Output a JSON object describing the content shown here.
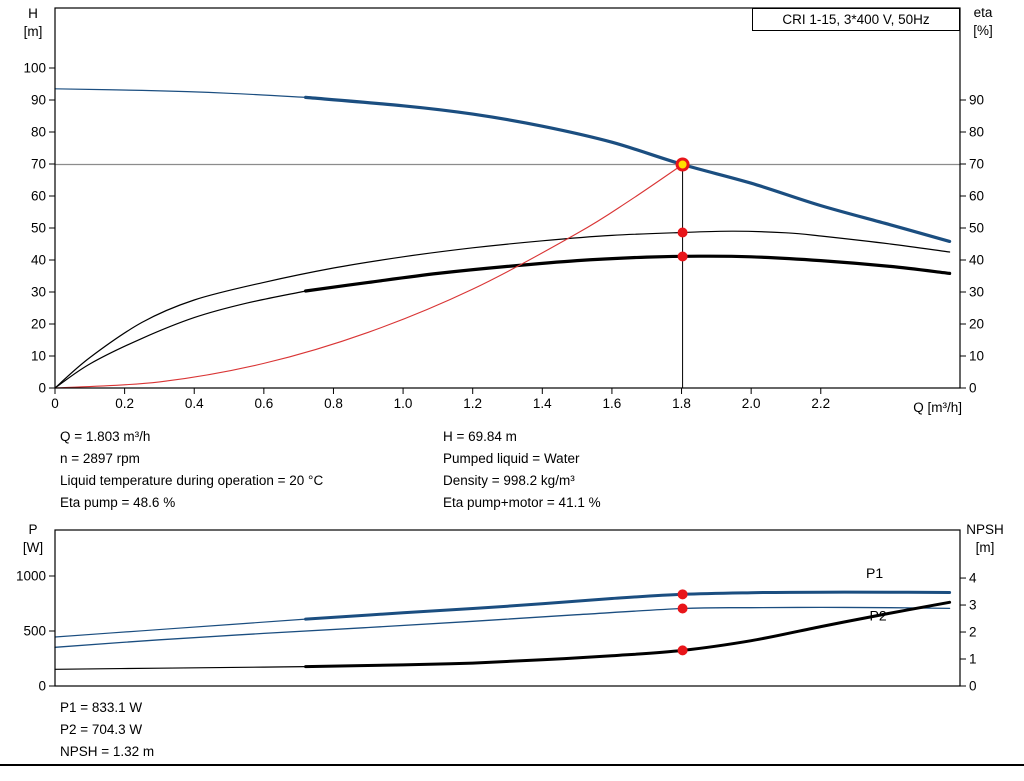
{
  "title_box": {
    "label": "CRI 1-15, 3*400 V, 50Hz"
  },
  "colors": {
    "blue": "#1b4e80",
    "red": "#d93535",
    "black": "#000000",
    "gray_line": "#8c8c8c",
    "marker_red": "#e8151a",
    "marker_yellow": "#ffe000"
  },
  "axis_labels": {
    "top_left_1": "H",
    "top_left_2": "[m]",
    "top_right_1": "eta",
    "top_right_2": "[%]",
    "top_x": "Q [m³/h]",
    "bottom_left_1": "P",
    "bottom_left_2": "[W]",
    "bottom_right_1": "NPSH",
    "bottom_right_2": "[m]"
  },
  "info_left": [
    "Q = 1.803 m³/h",
    "n = 2897 rpm",
    "Liquid temperature during operation = 20 °C",
    "Eta pump = 48.6 %"
  ],
  "info_right": [
    "H = 69.84 m",
    "Pumped liquid = Water",
    "Density = 998.2 kg/m³",
    "Eta pump+motor = 41.1 %"
  ],
  "info_bottom": [
    "P1 = 833.1 W",
    "P2 = 704.3 W",
    "NPSH = 1.32 m"
  ],
  "chart_data": [
    {
      "id": "qh-eta",
      "type": "line",
      "title": "CRI 1-15, 3*400 V, 50Hz",
      "x_axis": {
        "label": "Q [m³/h]",
        "min": 0,
        "max": 2.6,
        "ticks": [
          0,
          0.2,
          0.4,
          0.6,
          0.8,
          1.0,
          1.2,
          1.4,
          1.6,
          1.8,
          2.0,
          2.2
        ],
        "tick_labels": [
          "0",
          "0.2",
          "0.4",
          "0.6",
          "0.8",
          "1.0",
          "1.2",
          "1.4",
          "1.6",
          "1.8",
          "2.0",
          "2.2"
        ]
      },
      "left_axis": {
        "label": "H [m]",
        "min": 0,
        "max": 118.75,
        "ticks": [
          0,
          10,
          20,
          30,
          40,
          50,
          60,
          70,
          80,
          90,
          100
        ]
      },
      "right_axis": {
        "label": "eta [%]",
        "min": 0,
        "max": 118.75,
        "ticks": [
          0,
          10,
          20,
          30,
          40,
          50,
          60,
          70,
          80,
          90
        ]
      },
      "series": [
        {
          "name": "H-curve",
          "color": "blue",
          "axis": "left",
          "segments": [
            {
              "w": 1.2,
              "pts": [
                [
                  0,
                  93.5
                ],
                [
                  0.25,
                  93.0
                ],
                [
                  0.5,
                  92.1
                ],
                [
                  0.72,
                  90.8
                ]
              ]
            },
            {
              "w": 3.2,
              "pts": [
                [
                  0.72,
                  90.8
                ],
                [
                  1.0,
                  88.2
                ],
                [
                  1.2,
                  85.6
                ],
                [
                  1.4,
                  81.8
                ],
                [
                  1.6,
                  76.8
                ],
                [
                  1.803,
                  69.84
                ],
                [
                  2.0,
                  64.0
                ],
                [
                  2.2,
                  57.0
                ],
                [
                  2.4,
                  51.0
                ],
                [
                  2.57,
                  45.8
                ]
              ]
            }
          ]
        },
        {
          "name": "eta-pump",
          "color": "black",
          "axis": "right",
          "segments": [
            {
              "w": 1.2,
              "pts": [
                [
                  0,
                  0
                ],
                [
                  0.1,
                  9.5
                ],
                [
                  0.25,
                  20.5
                ],
                [
                  0.4,
                  27.5
                ],
                [
                  0.6,
                  33.0
                ],
                [
                  0.8,
                  37.5
                ],
                [
                  1.0,
                  41.0
                ],
                [
                  1.2,
                  43.8
                ],
                [
                  1.4,
                  46.0
                ],
                [
                  1.6,
                  47.7
                ],
                [
                  1.803,
                  48.6
                ],
                [
                  1.95,
                  49.0
                ],
                [
                  2.1,
                  48.5
                ],
                [
                  2.2,
                  47.5
                ],
                [
                  2.4,
                  45.0
                ],
                [
                  2.57,
                  42.5
                ]
              ]
            }
          ]
        },
        {
          "name": "eta-pump-motor",
          "color": "black",
          "axis": "right",
          "segments": [
            {
              "w": 1.2,
              "pts": [
                [
                  0,
                  0
                ],
                [
                  0.1,
                  7.5
                ],
                [
                  0.25,
                  15.5
                ],
                [
                  0.4,
                  22.0
                ],
                [
                  0.55,
                  26.5
                ],
                [
                  0.72,
                  30.3
                ]
              ]
            },
            {
              "w": 3.2,
              "pts": [
                [
                  0.72,
                  30.3
                ],
                [
                  0.9,
                  33.0
                ],
                [
                  1.1,
                  35.8
                ],
                [
                  1.3,
                  38.0
                ],
                [
                  1.5,
                  39.8
                ],
                [
                  1.7,
                  40.9
                ],
                [
                  1.85,
                  41.2
                ],
                [
                  2.0,
                  41.0
                ],
                [
                  2.2,
                  39.8
                ],
                [
                  2.4,
                  38.0
                ],
                [
                  2.57,
                  35.8
                ]
              ]
            }
          ]
        },
        {
          "name": "system-curve",
          "color": "red",
          "axis": "left",
          "segments": [
            {
              "w": 1.1,
              "pts": [
                [
                  0,
                  0
                ],
                [
                  0.3,
                  1.9
                ],
                [
                  0.6,
                  7.7
                ],
                [
                  0.9,
                  17.4
                ],
                [
                  1.2,
                  30.9
                ],
                [
                  1.5,
                  48.3
                ],
                [
                  1.65,
                  58.5
                ],
                [
                  1.803,
                  69.84
                ]
              ]
            }
          ]
        }
      ],
      "crosshair": {
        "h_line": 69.84,
        "v_line": 1.803
      },
      "markers": [
        {
          "q": 1.803,
          "v": 69.84,
          "axis": "left",
          "style": "duty"
        },
        {
          "q": 1.803,
          "v": 48.6,
          "axis": "right",
          "style": "dot"
        },
        {
          "q": 1.803,
          "v": 41.1,
          "axis": "right",
          "style": "dot"
        }
      ],
      "labels": []
    },
    {
      "id": "power-npsh",
      "type": "line",
      "title": "",
      "x_axis": {
        "label": "",
        "min": 0,
        "max": 2.6,
        "ticks": [],
        "tick_labels": []
      },
      "left_axis": {
        "label": "P [W]",
        "min": 0,
        "max": 1418,
        "ticks": [
          0,
          500,
          1000
        ]
      },
      "right_axis": {
        "label": "NPSH [m]",
        "min": 0,
        "max": 5.78,
        "ticks": [
          0,
          1,
          2,
          3,
          4
        ]
      },
      "series": [
        {
          "name": "P1",
          "color": "blue",
          "axis": "left",
          "segments": [
            {
              "w": 1.2,
              "pts": [
                [
                  0,
                  445
                ],
                [
                  0.25,
                  502
                ],
                [
                  0.5,
                  558
                ],
                [
                  0.72,
                  608
                ]
              ]
            },
            {
              "w": 3.0,
              "pts": [
                [
                  0.72,
                  608
                ],
                [
                  1.0,
                  665
                ],
                [
                  1.3,
                  725
                ],
                [
                  1.6,
                  795
                ],
                [
                  1.803,
                  833.1
                ],
                [
                  2.0,
                  848
                ],
                [
                  2.2,
                  853
                ],
                [
                  2.4,
                  853
                ],
                [
                  2.57,
                  850
                ]
              ]
            }
          ]
        },
        {
          "name": "P2",
          "color": "blue",
          "axis": "left",
          "segments": [
            {
              "w": 1.3,
              "pts": [
                [
                  0,
                  352
                ],
                [
                  0.3,
                  420
                ],
                [
                  0.6,
                  478
                ],
                [
                  0.9,
                  532
                ],
                [
                  1.2,
                  588
                ],
                [
                  1.5,
                  648
                ],
                [
                  1.803,
                  704.3
                ],
                [
                  2.0,
                  712
                ],
                [
                  2.2,
                  714
                ],
                [
                  2.4,
                  712
                ],
                [
                  2.57,
                  705
                ]
              ]
            }
          ]
        },
        {
          "name": "NPSH",
          "color": "black",
          "axis": "right",
          "segments": [
            {
              "w": 1.2,
              "pts": [
                [
                  0,
                  0.62
                ],
                [
                  0.3,
                  0.66
                ],
                [
                  0.6,
                  0.7
                ],
                [
                  0.72,
                  0.72
                ]
              ]
            },
            {
              "w": 3.0,
              "pts": [
                [
                  0.72,
                  0.72
                ],
                [
                  1.0,
                  0.78
                ],
                [
                  1.2,
                  0.85
                ],
                [
                  1.4,
                  0.97
                ],
                [
                  1.6,
                  1.12
                ],
                [
                  1.803,
                  1.32
                ],
                [
                  2.0,
                  1.68
                ],
                [
                  2.2,
                  2.2
                ],
                [
                  2.4,
                  2.7
                ],
                [
                  2.57,
                  3.1
                ]
              ]
            }
          ]
        }
      ],
      "crosshair": null,
      "markers": [
        {
          "q": 1.803,
          "v": 833.1,
          "axis": "left",
          "style": "dot"
        },
        {
          "q": 1.803,
          "v": 704.3,
          "axis": "left",
          "style": "dot"
        },
        {
          "q": 1.803,
          "v": 1.32,
          "axis": "right",
          "style": "dot"
        }
      ],
      "labels": [
        {
          "text": "P1",
          "q": 2.33,
          "v": 982,
          "axis": "left",
          "color": "blue"
        },
        {
          "text": "P2",
          "q": 2.34,
          "v": 596,
          "axis": "left",
          "color": "blue"
        }
      ]
    }
  ]
}
